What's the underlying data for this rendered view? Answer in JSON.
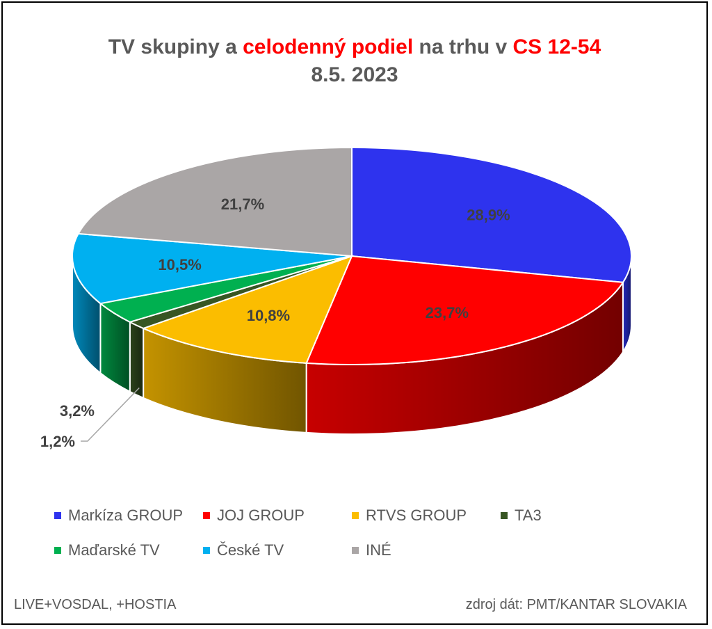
{
  "title": {
    "part1": "TV skupiny a ",
    "highlight1": "celodenný podiel",
    "part2": " na trhu v ",
    "highlight2": "CS 12-54",
    "line2": "8.5. 2023"
  },
  "chart_data": {
    "type": "pie",
    "series": [
      {
        "name": "Markíza GROUP",
        "value": 28.9,
        "label": "28,9%",
        "color": "#2e33ee"
      },
      {
        "name": "JOJ GROUP",
        "value": 23.7,
        "label": "23,7%",
        "color": "#ff0000"
      },
      {
        "name": "RTVS GROUP",
        "value": 10.8,
        "label": "10,8%",
        "color": "#fbbd00"
      },
      {
        "name": "TA3",
        "value": 1.2,
        "label": "1,2%",
        "color": "#375623"
      },
      {
        "name": "Maďarské  TV",
        "value": 3.2,
        "label": "3,2%",
        "color": "#00b050"
      },
      {
        "name": "České  TV",
        "value": 10.5,
        "label": "10,5%",
        "color": "#00b0f0"
      },
      {
        "name": "INÉ",
        "value": 21.7,
        "label": "21,7%",
        "color": "#aaa6a6"
      }
    ],
    "legend_position": "bottom"
  },
  "footer": {
    "left": "LIVE+VOSDAL,  +HOSTIA",
    "right": "zdroj dát: PMT/KANTAR SLOVAKIA"
  }
}
